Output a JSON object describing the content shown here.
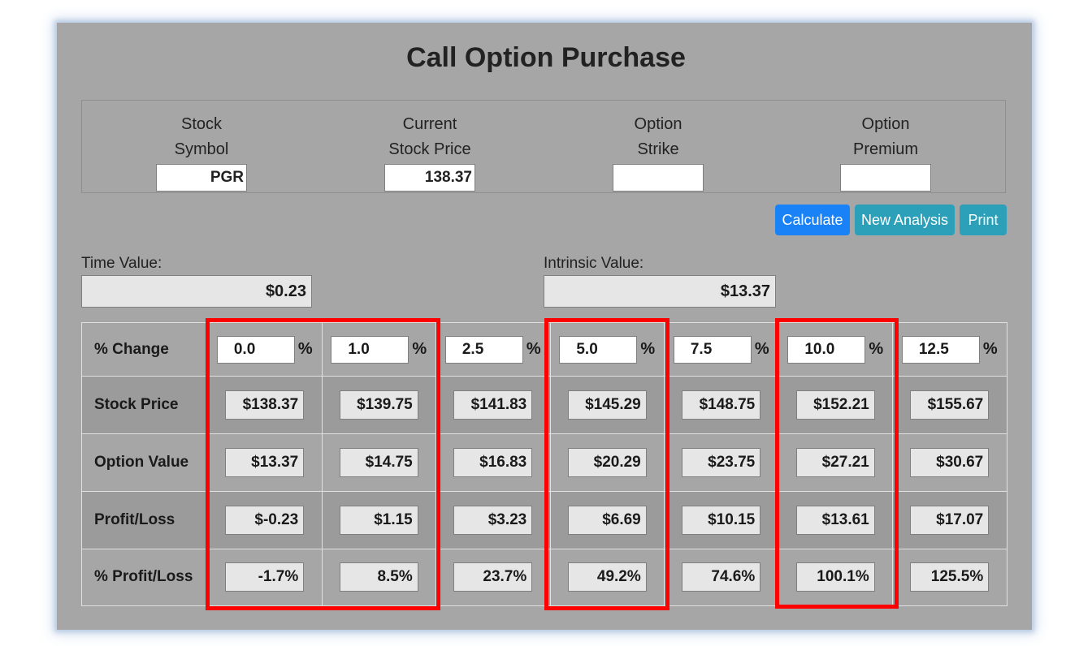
{
  "title": "Call Option Purchase",
  "inputs": [
    {
      "label1": "Stock",
      "label2": "Symbol",
      "value": "PGR"
    },
    {
      "label1": "Current",
      "label2": "Stock Price",
      "value": "138.37"
    },
    {
      "label1": "Option",
      "label2": "Strike",
      "value": ""
    },
    {
      "label1": "Option",
      "label2": "Premium",
      "value": ""
    }
  ],
  "buttons": {
    "calculate": "Calculate",
    "new_analysis": "New Analysis",
    "print": "Print"
  },
  "time_value": {
    "label": "Time Value:",
    "value": "$0.23"
  },
  "intrinsic_value": {
    "label": "Intrinsic Value:",
    "value": "$13.37"
  },
  "table": {
    "percent_sign": "%",
    "row_labels": [
      "% Change",
      "Stock Price",
      "Option Value",
      "Profit/Loss",
      "% Profit/Loss"
    ],
    "pct_change": [
      "0.0",
      "1.0",
      "2.5",
      "5.0",
      "7.5",
      "10.0",
      "12.5"
    ],
    "stock_price": [
      "$138.37",
      "$139.75",
      "$141.83",
      "$145.29",
      "$148.75",
      "$152.21",
      "$155.67"
    ],
    "option_value": [
      "$13.37",
      "$14.75",
      "$16.83",
      "$20.29",
      "$23.75",
      "$27.21",
      "$30.67"
    ],
    "profit_loss": [
      "$-0.23",
      "$1.15",
      "$3.23",
      "$6.69",
      "$10.15",
      "$13.61",
      "$17.07"
    ],
    "pct_profit_loss": [
      "-1.7%",
      "8.5%",
      "23.7%",
      "49.2%",
      "74.6%",
      "100.1%",
      "125.5%"
    ]
  },
  "highlight_color": "#ff0000"
}
